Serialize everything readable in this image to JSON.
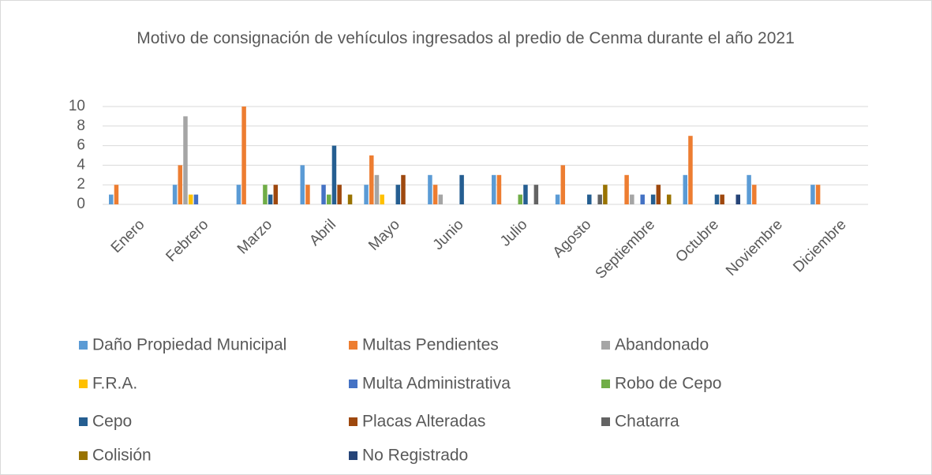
{
  "chart_data": {
    "type": "bar",
    "title": "Motivo de consignación de vehículos ingresados al predio de Cenma durante el año 2021",
    "categories": [
      "Enero",
      "Febrero",
      "Marzo",
      "Abril",
      "Mayo",
      "Junio",
      "Julio",
      "Agosto",
      "Septiembre",
      "Octubre",
      "Noviembre",
      "Diciembre"
    ],
    "series": [
      {
        "name": "Daño Propiedad Municipal",
        "color": "#5b9bd5",
        "values": [
          1,
          2,
          2,
          4,
          2,
          3,
          3,
          1,
          0,
          3,
          3,
          2
        ]
      },
      {
        "name": "Multas Pendientes",
        "color": "#ed7d31",
        "values": [
          2,
          4,
          10,
          2,
          5,
          2,
          3,
          4,
          3,
          7,
          2,
          2
        ]
      },
      {
        "name": "Abandonado",
        "color": "#a5a5a5",
        "values": [
          0,
          9,
          0,
          0,
          3,
          1,
          0,
          0,
          1,
          0,
          0,
          0
        ]
      },
      {
        "name": "F.R.A.",
        "color": "#ffc000",
        "values": [
          0,
          1,
          0,
          0,
          1,
          0,
          0,
          0,
          0,
          0,
          0,
          0
        ]
      },
      {
        "name": "Multa Administrativa",
        "color": "#4472c4",
        "values": [
          0,
          1,
          0,
          2,
          0,
          0,
          0,
          0,
          1,
          0,
          0,
          0
        ]
      },
      {
        "name": "Robo de Cepo",
        "color": "#70ad47",
        "values": [
          0,
          0,
          2,
          1,
          0,
          0,
          1,
          0,
          0,
          0,
          0,
          0
        ]
      },
      {
        "name": "Cepo",
        "color": "#255e91",
        "values": [
          0,
          0,
          1,
          6,
          2,
          3,
          2,
          1,
          1,
          1,
          0,
          0
        ]
      },
      {
        "name": "Placas Alteradas",
        "color": "#9e480e",
        "values": [
          0,
          0,
          2,
          2,
          3,
          0,
          0,
          0,
          2,
          1,
          0,
          0
        ]
      },
      {
        "name": "Chatarra",
        "color": "#636363",
        "values": [
          0,
          0,
          0,
          0,
          0,
          0,
          2,
          1,
          0,
          0,
          0,
          0
        ]
      },
      {
        "name": "Colisión",
        "color": "#997300",
        "values": [
          0,
          0,
          0,
          1,
          0,
          0,
          0,
          2,
          1,
          0,
          0,
          0
        ]
      },
      {
        "name": "No Registrado",
        "color": "#264478",
        "values": [
          0,
          0,
          0,
          0,
          0,
          0,
          0,
          0,
          0,
          1,
          0,
          0
        ]
      }
    ],
    "ylim": [
      0,
      10
    ],
    "yticks": [
      0,
      2,
      4,
      6,
      8,
      10
    ],
    "grid": true,
    "legend": "bottom"
  }
}
